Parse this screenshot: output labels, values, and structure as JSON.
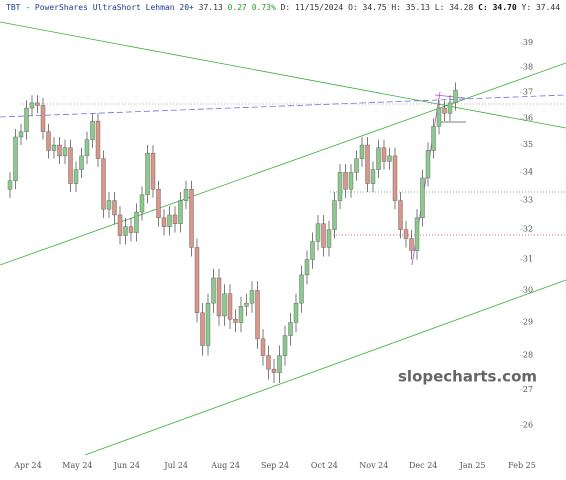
{
  "chart_data": {
    "type": "candlestick",
    "title": "TBT - PowerShares UltraShort Lehman 20+",
    "last": "37.13",
    "change": "0.27",
    "change_pct": "0.73%",
    "date": "D: 11/15/2024",
    "ohlc_open": "O: 34.75",
    "ohlc_high": "H: 35.13",
    "ohlc_low": "L: 34.28",
    "ohlc_close": "C: 34.70",
    "prev": "Y: 37.44",
    "watermark": "slopecharts.com",
    "log_scale": true,
    "up_color": "#8cc98c",
    "down_color": "#d9978b",
    "ylim": [
      25.2,
      40.3
    ],
    "yticks": [
      26,
      27,
      28,
      29,
      30,
      31,
      32,
      33,
      34,
      35,
      36,
      37,
      38,
      39
    ],
    "xticks": [
      "Apr 24",
      "May 24",
      "Jun 24",
      "Jul 24",
      "Aug 24",
      "Sep 24",
      "Oct 24",
      "Nov 24",
      "Dec 24",
      "Jan 25",
      "Feb 25"
    ],
    "open": [
      33.4,
      33.7,
      35.3,
      35.5,
      36.4,
      36.6,
      36.5,
      35.5,
      34.8,
      35.0,
      34.6,
      34.9,
      33.6,
      34.1,
      34.6,
      35.2,
      35.9,
      34.5,
      32.7,
      33.0,
      32.5,
      31.8,
      32.1,
      31.9,
      32.6,
      33.2,
      34.7,
      33.4,
      32.4,
      32.1,
      32.5,
      32.2,
      33.0,
      33.4,
      31.4,
      29.3,
      28.3,
      29.6,
      30.4,
      29.2,
      29.9,
      29.1,
      29.0,
      29.5,
      29.6,
      30.0,
      28.5,
      28.0,
      27.6,
      27.5,
      28.0,
      28.6,
      29.0,
      29.6,
      30.5,
      31.0,
      31.6,
      32.2,
      31.4,
      32.0,
      33.0,
      34.0,
      33.4,
      34.0,
      34.5,
      35.0,
      33.6,
      34.1,
      34.9,
      34.4,
      34.6,
      33.0,
      32.0,
      31.7,
      31.3,
      32.4,
      33.8,
      34.8,
      35.7,
      36.4,
      36.2,
      36.6
    ],
    "high": [
      34.0,
      35.6,
      35.8,
      36.7,
      36.9,
      36.9,
      36.8,
      35.8,
      35.3,
      35.3,
      35.2,
      35.2,
      34.4,
      34.9,
      35.5,
      36.2,
      36.2,
      34.8,
      33.3,
      33.3,
      32.8,
      32.4,
      32.4,
      32.9,
      33.5,
      35.0,
      35.0,
      33.7,
      32.7,
      32.8,
      32.8,
      33.3,
      33.7,
      33.7,
      31.7,
      29.6,
      29.9,
      30.7,
      30.7,
      30.2,
      30.2,
      29.4,
      29.8,
      29.9,
      30.3,
      30.3,
      28.8,
      28.3,
      27.9,
      28.3,
      28.9,
      29.3,
      29.9,
      30.8,
      31.3,
      31.9,
      32.5,
      32.5,
      32.3,
      33.3,
      34.3,
      34.3,
      34.3,
      34.8,
      35.3,
      35.3,
      34.4,
      35.2,
      35.2,
      34.9,
      34.9,
      33.3,
      32.3,
      32.0,
      32.7,
      34.1,
      35.1,
      36.0,
      36.7,
      36.7,
      36.9,
      37.4
    ],
    "low": [
      33.1,
      33.4,
      35.0,
      35.2,
      36.1,
      36.2,
      35.2,
      34.5,
      34.5,
      34.3,
      34.3,
      33.3,
      33.3,
      33.8,
      34.3,
      34.9,
      34.2,
      32.4,
      32.4,
      32.2,
      31.5,
      31.5,
      31.6,
      31.6,
      32.3,
      32.9,
      33.1,
      32.1,
      31.8,
      31.8,
      31.9,
      31.9,
      32.7,
      31.1,
      29.0,
      28.0,
      28.0,
      29.3,
      28.9,
      28.9,
      28.8,
      28.7,
      28.7,
      29.2,
      29.3,
      28.2,
      27.7,
      27.3,
      27.2,
      27.2,
      27.7,
      28.3,
      28.7,
      29.3,
      30.2,
      30.7,
      31.3,
      31.1,
      31.1,
      31.7,
      32.7,
      33.1,
      33.1,
      33.7,
      34.2,
      33.3,
      33.3,
      33.8,
      34.1,
      34.1,
      32.7,
      31.7,
      31.4,
      31.0,
      31.0,
      32.1,
      33.5,
      34.5,
      35.4,
      35.9,
      35.9,
      36.3
    ],
    "close": [
      33.7,
      35.3,
      35.5,
      36.4,
      36.6,
      36.5,
      35.5,
      34.8,
      35.0,
      34.6,
      34.9,
      33.6,
      34.1,
      34.6,
      35.2,
      35.9,
      34.5,
      32.7,
      33.0,
      32.5,
      31.8,
      32.1,
      31.9,
      32.6,
      33.2,
      34.7,
      33.4,
      32.4,
      32.1,
      32.5,
      32.2,
      33.0,
      33.4,
      31.4,
      29.3,
      28.3,
      29.6,
      30.4,
      29.2,
      29.9,
      29.1,
      29.0,
      29.5,
      29.6,
      30.0,
      28.5,
      28.0,
      27.6,
      27.5,
      28.0,
      28.6,
      29.0,
      29.6,
      30.5,
      31.0,
      31.6,
      32.2,
      31.4,
      32.0,
      33.0,
      34.0,
      33.4,
      34.0,
      34.5,
      35.0,
      33.6,
      34.1,
      34.9,
      34.4,
      34.6,
      33.0,
      32.0,
      31.7,
      31.3,
      32.4,
      33.8,
      34.8,
      35.7,
      36.4,
      36.2,
      36.6,
      37.1
    ]
  }
}
